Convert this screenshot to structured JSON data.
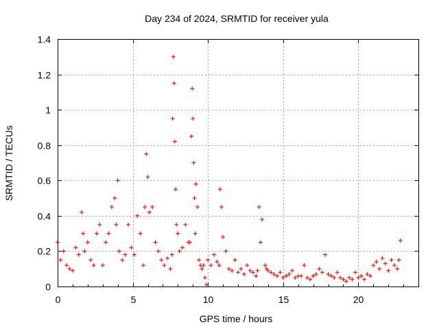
{
  "chart_data": {
    "type": "scatter",
    "title": "Day 234 of 2024, SRMTID for receiver yula",
    "xlabel": "GPS time / hours",
    "ylabel": "SRMTID / TECUs",
    "xlim": [
      0,
      24
    ],
    "ylim": [
      0,
      1.4
    ],
    "xticks": [
      0,
      5,
      10,
      15,
      20
    ],
    "xtick_labels": [
      "0",
      "5",
      "10",
      "15",
      "20"
    ],
    "yticks": [
      0,
      0.2,
      0.4,
      0.6,
      0.8,
      1.0,
      1.2,
      1.4
    ],
    "ytick_labels": [
      "0",
      "0.2",
      "0.4",
      "0.6",
      "0.8",
      "1",
      "1.2",
      "1.4"
    ],
    "grid": true,
    "marker": "+",
    "color": "#ff0000",
    "series": [
      {
        "name": "SRMTID",
        "x": [
          0.0,
          0.2,
          0.4,
          0.6,
          0.8,
          1.0,
          1.2,
          1.4,
          1.6,
          1.7,
          1.8,
          2.0,
          2.2,
          2.4,
          2.6,
          2.8,
          3.0,
          3.2,
          3.4,
          3.6,
          3.8,
          3.9,
          4.0,
          4.1,
          4.3,
          4.5,
          4.7,
          4.9,
          5.1,
          5.3,
          5.5,
          5.7,
          5.8,
          5.9,
          6.0,
          6.1,
          6.3,
          6.5,
          6.7,
          6.9,
          7.1,
          7.3,
          7.5,
          7.6,
          7.65,
          7.7,
          7.75,
          7.8,
          7.85,
          7.9,
          8.0,
          8.1,
          8.3,
          8.5,
          8.7,
          8.8,
          8.9,
          8.95,
          9.0,
          9.05,
          9.1,
          9.15,
          9.2,
          9.3,
          9.4,
          9.5,
          9.6,
          9.7,
          9.8,
          9.9,
          10.0,
          10.2,
          10.4,
          10.6,
          10.75,
          10.8,
          10.9,
          11.0,
          11.2,
          11.4,
          11.6,
          11.8,
          12.0,
          12.2,
          12.4,
          12.6,
          12.8,
          13.0,
          13.2,
          13.3,
          13.4,
          13.5,
          13.6,
          13.8,
          13.9,
          14.0,
          14.2,
          14.4,
          14.6,
          14.8,
          15.0,
          15.2,
          15.4,
          15.6,
          15.8,
          16.0,
          16.2,
          16.4,
          16.6,
          16.8,
          17.0,
          17.2,
          17.4,
          17.6,
          17.8,
          18.0,
          18.2,
          18.4,
          18.6,
          18.8,
          19.0,
          19.2,
          19.4,
          19.6,
          19.8,
          20.0,
          20.2,
          20.4,
          20.6,
          20.8,
          21.0,
          21.2,
          21.4,
          21.6,
          21.8,
          22.0,
          22.2,
          22.4,
          22.6,
          22.7,
          22.8
        ],
        "y": [
          0.25,
          0.15,
          0.2,
          0.12,
          0.1,
          0.09,
          0.22,
          0.18,
          0.42,
          0.3,
          0.2,
          0.25,
          0.15,
          0.12,
          0.3,
          0.35,
          0.12,
          0.25,
          0.3,
          0.45,
          0.5,
          0.35,
          0.6,
          0.2,
          0.15,
          0.18,
          0.35,
          0.22,
          0.18,
          0.4,
          0.3,
          0.12,
          0.45,
          0.75,
          0.62,
          0.42,
          0.45,
          0.25,
          0.2,
          0.15,
          0.12,
          0.16,
          0.1,
          0.18,
          0.95,
          1.3,
          1.15,
          0.82,
          0.55,
          0.35,
          0.3,
          0.2,
          0.22,
          0.35,
          0.25,
          0.25,
          0.85,
          1.12,
          0.95,
          0.7,
          0.5,
          0.3,
          0.58,
          0.45,
          0.15,
          0.12,
          0.1,
          0.12,
          0.05,
          0.01,
          0.15,
          0.12,
          0.18,
          0.14,
          0.12,
          0.55,
          0.45,
          0.28,
          0.2,
          0.1,
          0.09,
          0.15,
          0.08,
          0.1,
          0.07,
          0.12,
          0.09,
          0.08,
          0.06,
          0.09,
          0.45,
          0.25,
          0.38,
          0.12,
          0.1,
          0.09,
          0.08,
          0.07,
          0.06,
          0.08,
          0.05,
          0.06,
          0.07,
          0.09,
          0.05,
          0.06,
          0.06,
          0.12,
          0.05,
          0.04,
          0.06,
          0.07,
          0.1,
          0.08,
          0.18,
          0.07,
          0.06,
          0.05,
          0.08,
          0.05,
          0.04,
          0.03,
          0.05,
          0.04,
          0.08,
          0.05,
          0.06,
          0.04,
          0.07,
          0.06,
          0.12,
          0.14,
          0.1,
          0.16,
          0.13,
          0.09,
          0.15,
          0.12,
          0.1,
          0.15,
          0.26
        ]
      }
    ]
  }
}
